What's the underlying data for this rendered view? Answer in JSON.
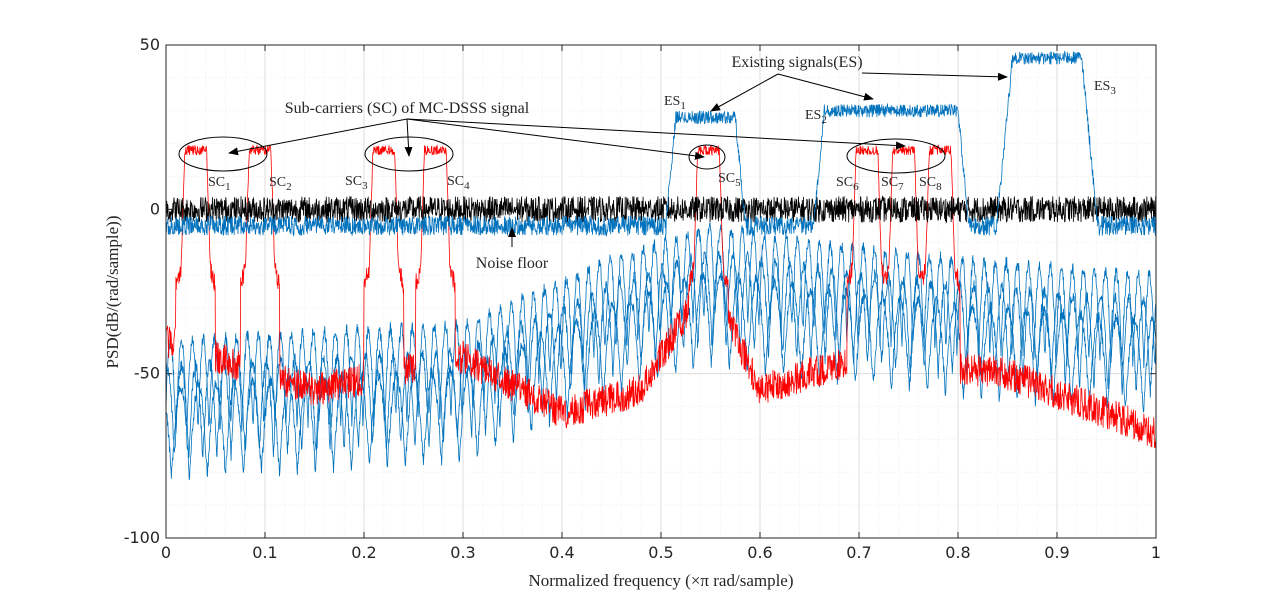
{
  "chart_data": {
    "type": "line",
    "title": "",
    "xlabel": "Normalized frequency (×π rad/sample)",
    "ylabel": "PSD(dB/(rad/sample))",
    "xlim": [
      0,
      1
    ],
    "ylim": [
      -100,
      50
    ],
    "grid": true,
    "x_ticks": [
      0,
      0.1,
      0.2,
      0.3,
      0.4,
      0.5,
      0.6,
      0.7,
      0.8,
      0.9,
      1
    ],
    "x_tick_labels": [
      "0",
      "0.1",
      "0.2",
      "0.3",
      "0.4",
      "0.5",
      "0.6",
      "0.7",
      "0.8",
      "0.9",
      "1"
    ],
    "y_ticks": [
      -100,
      -50,
      0,
      50
    ],
    "y_tick_labels": [
      "-100",
      "-50",
      "0",
      "50"
    ],
    "series": [
      {
        "name": "MC-DSSS signal",
        "color": "#ff0000",
        "subcarrier_centers": [
          0.03,
          0.095,
          0.22,
          0.272,
          0.548,
          0.708,
          0.745,
          0.782
        ],
        "passband_level": 18,
        "approx_floor_points": [
          [
            0,
            -40
          ],
          [
            0.15,
            -55
          ],
          [
            0.3,
            -45
          ],
          [
            0.4,
            -62
          ],
          [
            0.48,
            -55
          ],
          [
            0.548,
            -20
          ],
          [
            0.6,
            -55
          ],
          [
            0.7,
            -45
          ],
          [
            0.85,
            -50
          ],
          [
            1,
            -68
          ]
        ]
      },
      {
        "name": "Existing signals",
        "color": "#0072bd",
        "bands": [
          {
            "label": "ES1",
            "start": 0.515,
            "end": 0.575,
            "level": 28
          },
          {
            "label": "ES2",
            "start": 0.665,
            "end": 0.8,
            "level": 30
          },
          {
            "label": "ES3",
            "start": 0.855,
            "end": 0.925,
            "level": 46
          }
        ],
        "approx_sidelobe_points": [
          [
            0,
            -40
          ],
          [
            0.3,
            -35
          ],
          [
            0.45,
            -15
          ],
          [
            0.55,
            -5
          ],
          [
            0.65,
            -10
          ],
          [
            0.8,
            -15
          ],
          [
            1,
            -20
          ]
        ]
      },
      {
        "name": "Noise floor",
        "color": "#000000",
        "level": 0,
        "spread": 4
      }
    ],
    "annotations": [
      {
        "text": "Existing signals(ES)"
      },
      {
        "text": "Sub-carriers (SC) of MC-DSSS signal"
      },
      {
        "text": "Noise floor"
      },
      {
        "base": "ES",
        "sub": "1"
      },
      {
        "base": "ES",
        "sub": "2"
      },
      {
        "base": "ES",
        "sub": "3"
      },
      {
        "base": "SC",
        "sub": "1"
      },
      {
        "base": "SC",
        "sub": "2"
      },
      {
        "base": "SC",
        "sub": "3"
      },
      {
        "base": "SC",
        "sub": "4"
      },
      {
        "base": "SC",
        "sub": "5"
      },
      {
        "base": "SC",
        "sub": "6"
      },
      {
        "base": "SC",
        "sub": "7"
      },
      {
        "base": "SC",
        "sub": "8"
      }
    ]
  }
}
